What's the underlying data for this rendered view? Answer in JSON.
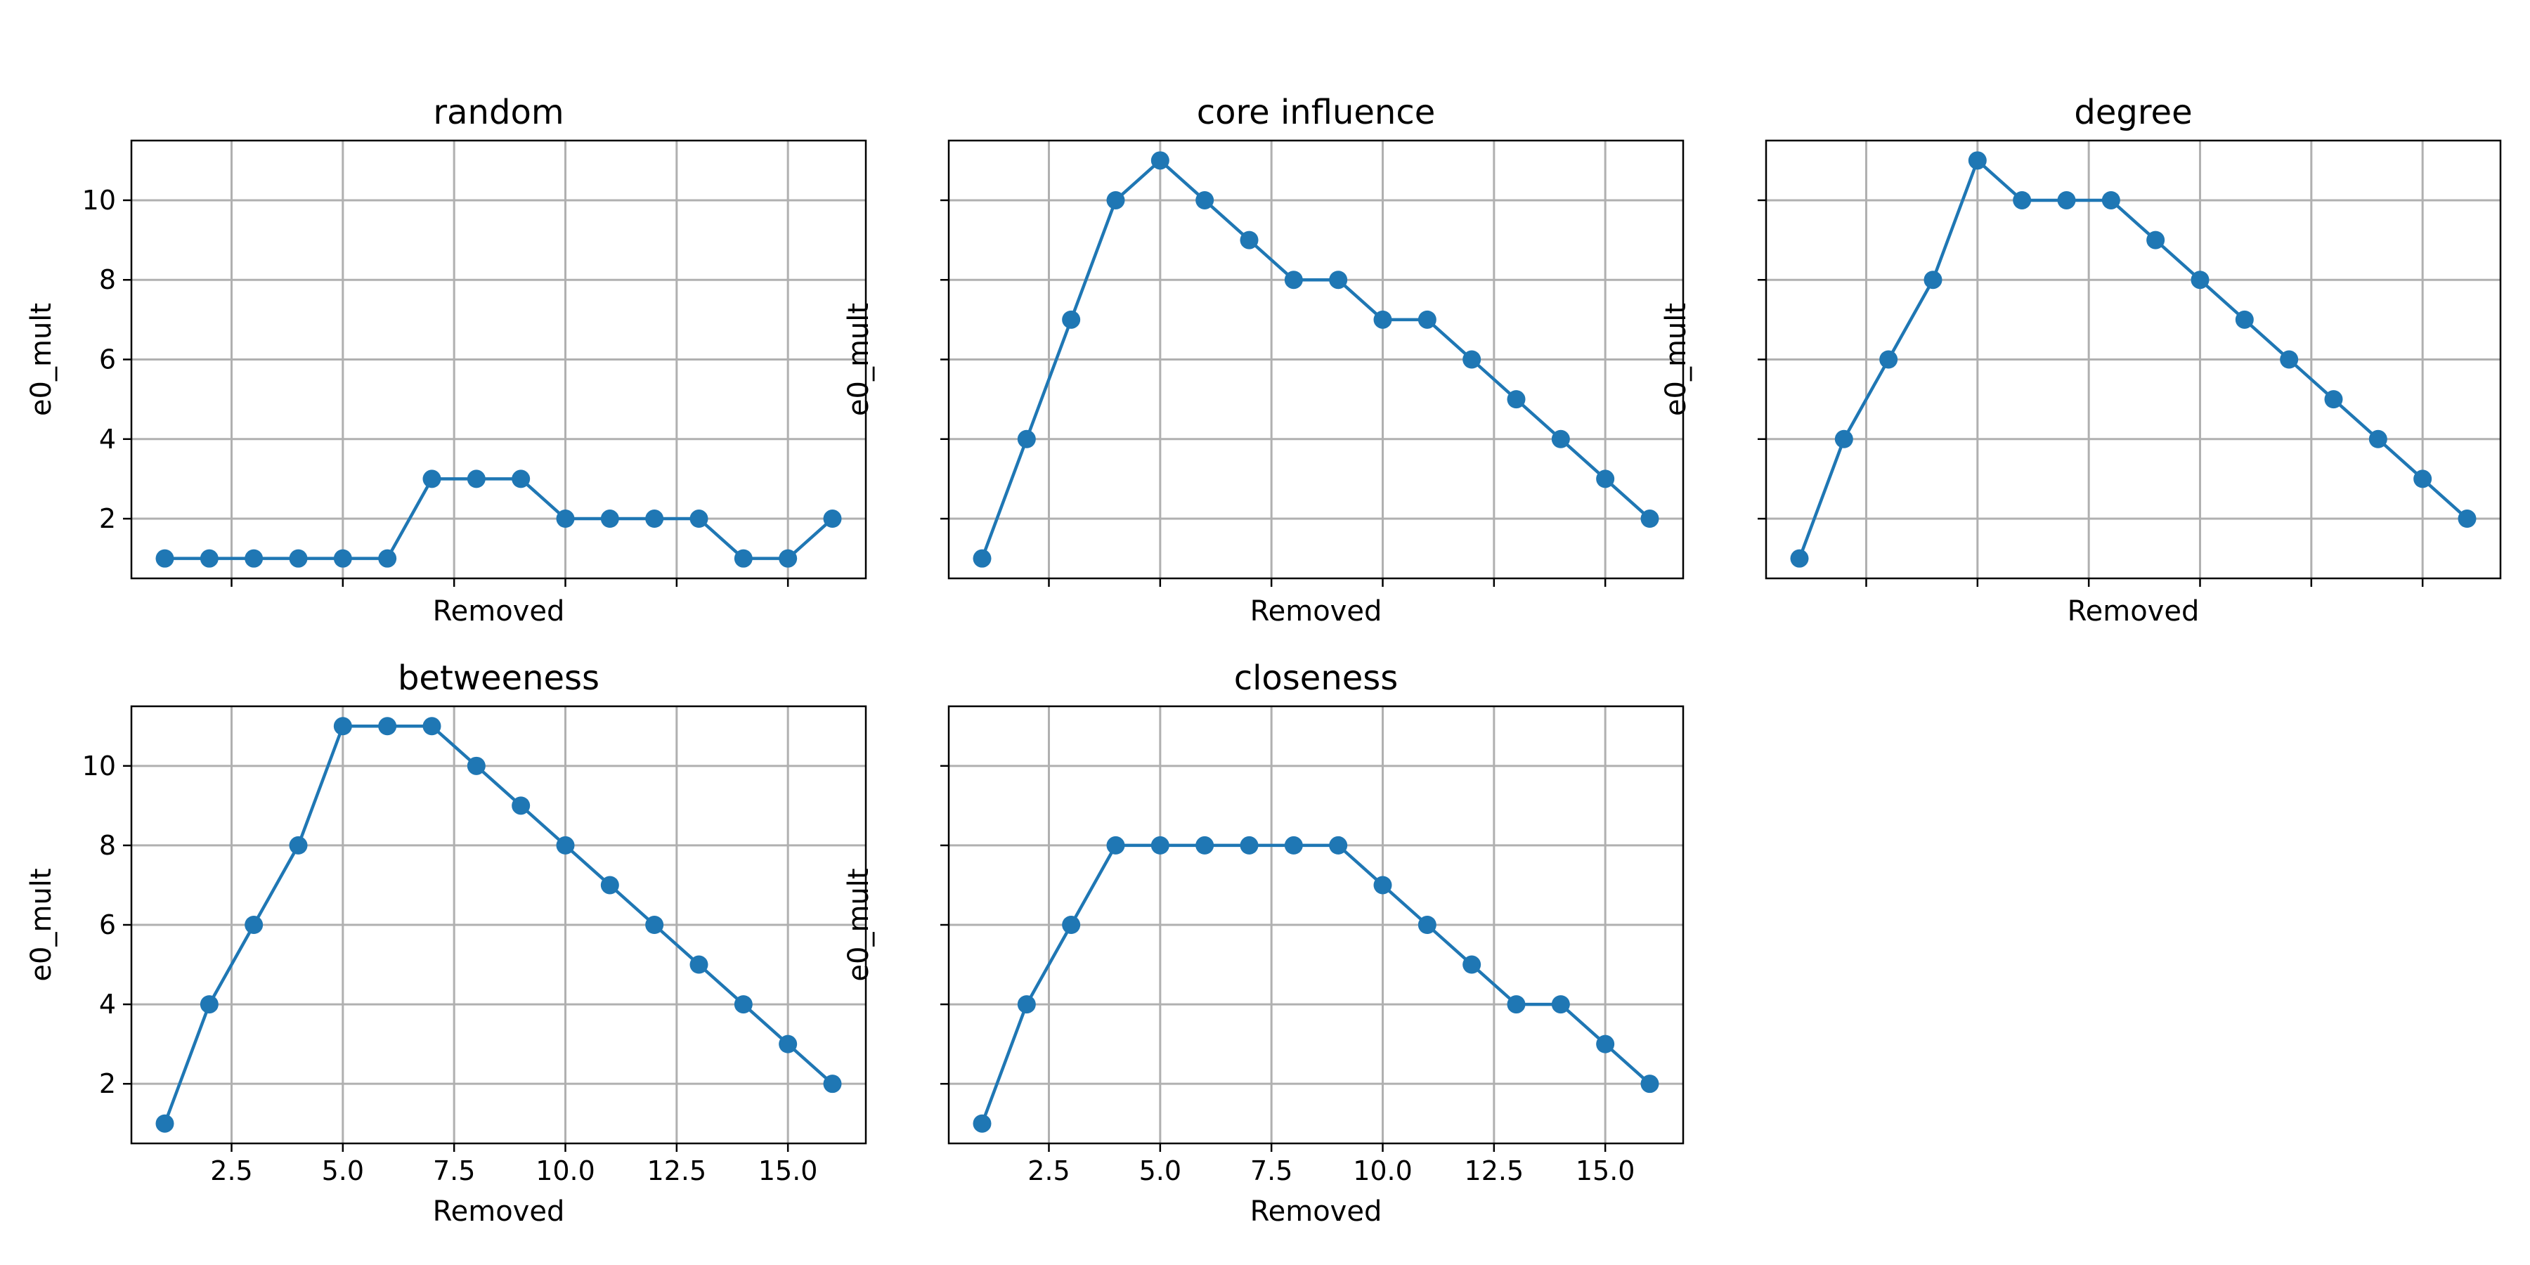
{
  "figure": {
    "line_color": "#1f77b4",
    "grid_color": "#b0b0b0"
  },
  "chart_data": [
    {
      "type": "line",
      "title": "random",
      "xlabel": "Removed",
      "ylabel": "e0_mult",
      "x": [
        1,
        2,
        3,
        4,
        5,
        6,
        7,
        8,
        9,
        10,
        11,
        12,
        13,
        14,
        15,
        16
      ],
      "y": [
        1,
        1,
        1,
        1,
        1,
        1,
        3,
        3,
        3,
        2,
        2,
        2,
        2,
        1,
        1,
        2
      ],
      "xlim": [
        0.25,
        16.75
      ],
      "ylim": [
        0.5,
        11.5
      ],
      "xticks": [
        2.5,
        5.0,
        7.5,
        10.0,
        12.5,
        15.0
      ],
      "xtick_labels": [],
      "yticks": [
        2,
        4,
        6,
        8,
        10
      ],
      "ytick_labels": [
        "2",
        "4",
        "6",
        "8",
        "10"
      ],
      "grid": true,
      "marker": "circle"
    },
    {
      "type": "line",
      "title": "core influence",
      "xlabel": "Removed",
      "ylabel": "e0_mult",
      "x": [
        1,
        2,
        3,
        4,
        5,
        6,
        7,
        8,
        9,
        10,
        11,
        12,
        13,
        14,
        15,
        16
      ],
      "y": [
        1,
        4,
        7,
        10,
        11,
        10,
        9,
        8,
        8,
        7,
        7,
        6,
        5,
        4,
        3,
        2
      ],
      "xlim": [
        0.25,
        16.75
      ],
      "ylim": [
        0.5,
        11.5
      ],
      "xticks": [
        2.5,
        5.0,
        7.5,
        10.0,
        12.5,
        15.0
      ],
      "xtick_labels": [],
      "yticks": [
        2,
        4,
        6,
        8,
        10
      ],
      "ytick_labels": [],
      "grid": true,
      "marker": "circle"
    },
    {
      "type": "line",
      "title": "degree",
      "xlabel": "Removed",
      "ylabel": "e0_mult",
      "x": [
        1,
        2,
        3,
        4,
        5,
        6,
        7,
        8,
        9,
        10,
        11,
        12,
        13,
        14,
        15,
        16
      ],
      "y": [
        1,
        4,
        6,
        8,
        11,
        10,
        10,
        10,
        9,
        8,
        7,
        6,
        5,
        4,
        3,
        2
      ],
      "xlim": [
        0.25,
        16.75
      ],
      "ylim": [
        0.5,
        11.5
      ],
      "xticks": [
        2.5,
        5.0,
        7.5,
        10.0,
        12.5,
        15.0
      ],
      "xtick_labels": [],
      "yticks": [
        2,
        4,
        6,
        8,
        10
      ],
      "ytick_labels": [],
      "grid": true,
      "marker": "circle"
    },
    {
      "type": "line",
      "title": "betweeness",
      "xlabel": "Removed",
      "ylabel": "e0_mult",
      "x": [
        1,
        2,
        3,
        4,
        5,
        6,
        7,
        8,
        9,
        10,
        11,
        12,
        13,
        14,
        15,
        16
      ],
      "y": [
        1,
        4,
        6,
        8,
        11,
        11,
        11,
        10,
        9,
        8,
        7,
        6,
        5,
        4,
        3,
        2
      ],
      "xlim": [
        0.25,
        16.75
      ],
      "ylim": [
        0.5,
        11.5
      ],
      "xticks": [
        2.5,
        5.0,
        7.5,
        10.0,
        12.5,
        15.0
      ],
      "xtick_labels": [
        "2.5",
        "5.0",
        "7.5",
        "10.0",
        "12.5",
        "15.0"
      ],
      "yticks": [
        2,
        4,
        6,
        8,
        10
      ],
      "ytick_labels": [
        "2",
        "4",
        "6",
        "8",
        "10"
      ],
      "grid": true,
      "marker": "circle"
    },
    {
      "type": "line",
      "title": "closeness",
      "xlabel": "Removed",
      "ylabel": "e0_mult",
      "x": [
        1,
        2,
        3,
        4,
        5,
        6,
        7,
        8,
        9,
        10,
        11,
        12,
        13,
        14,
        15,
        16
      ],
      "y": [
        1,
        4,
        6,
        8,
        8,
        8,
        8,
        8,
        8,
        7,
        6,
        5,
        4,
        4,
        3,
        2
      ],
      "xlim": [
        0.25,
        16.75
      ],
      "ylim": [
        0.5,
        11.5
      ],
      "xticks": [
        2.5,
        5.0,
        7.5,
        10.0,
        12.5,
        15.0
      ],
      "xtick_labels": [
        "2.5",
        "5.0",
        "7.5",
        "10.0",
        "12.5",
        "15.0"
      ],
      "yticks": [
        2,
        4,
        6,
        8,
        10
      ],
      "ytick_labels": [],
      "grid": true,
      "marker": "circle"
    }
  ]
}
